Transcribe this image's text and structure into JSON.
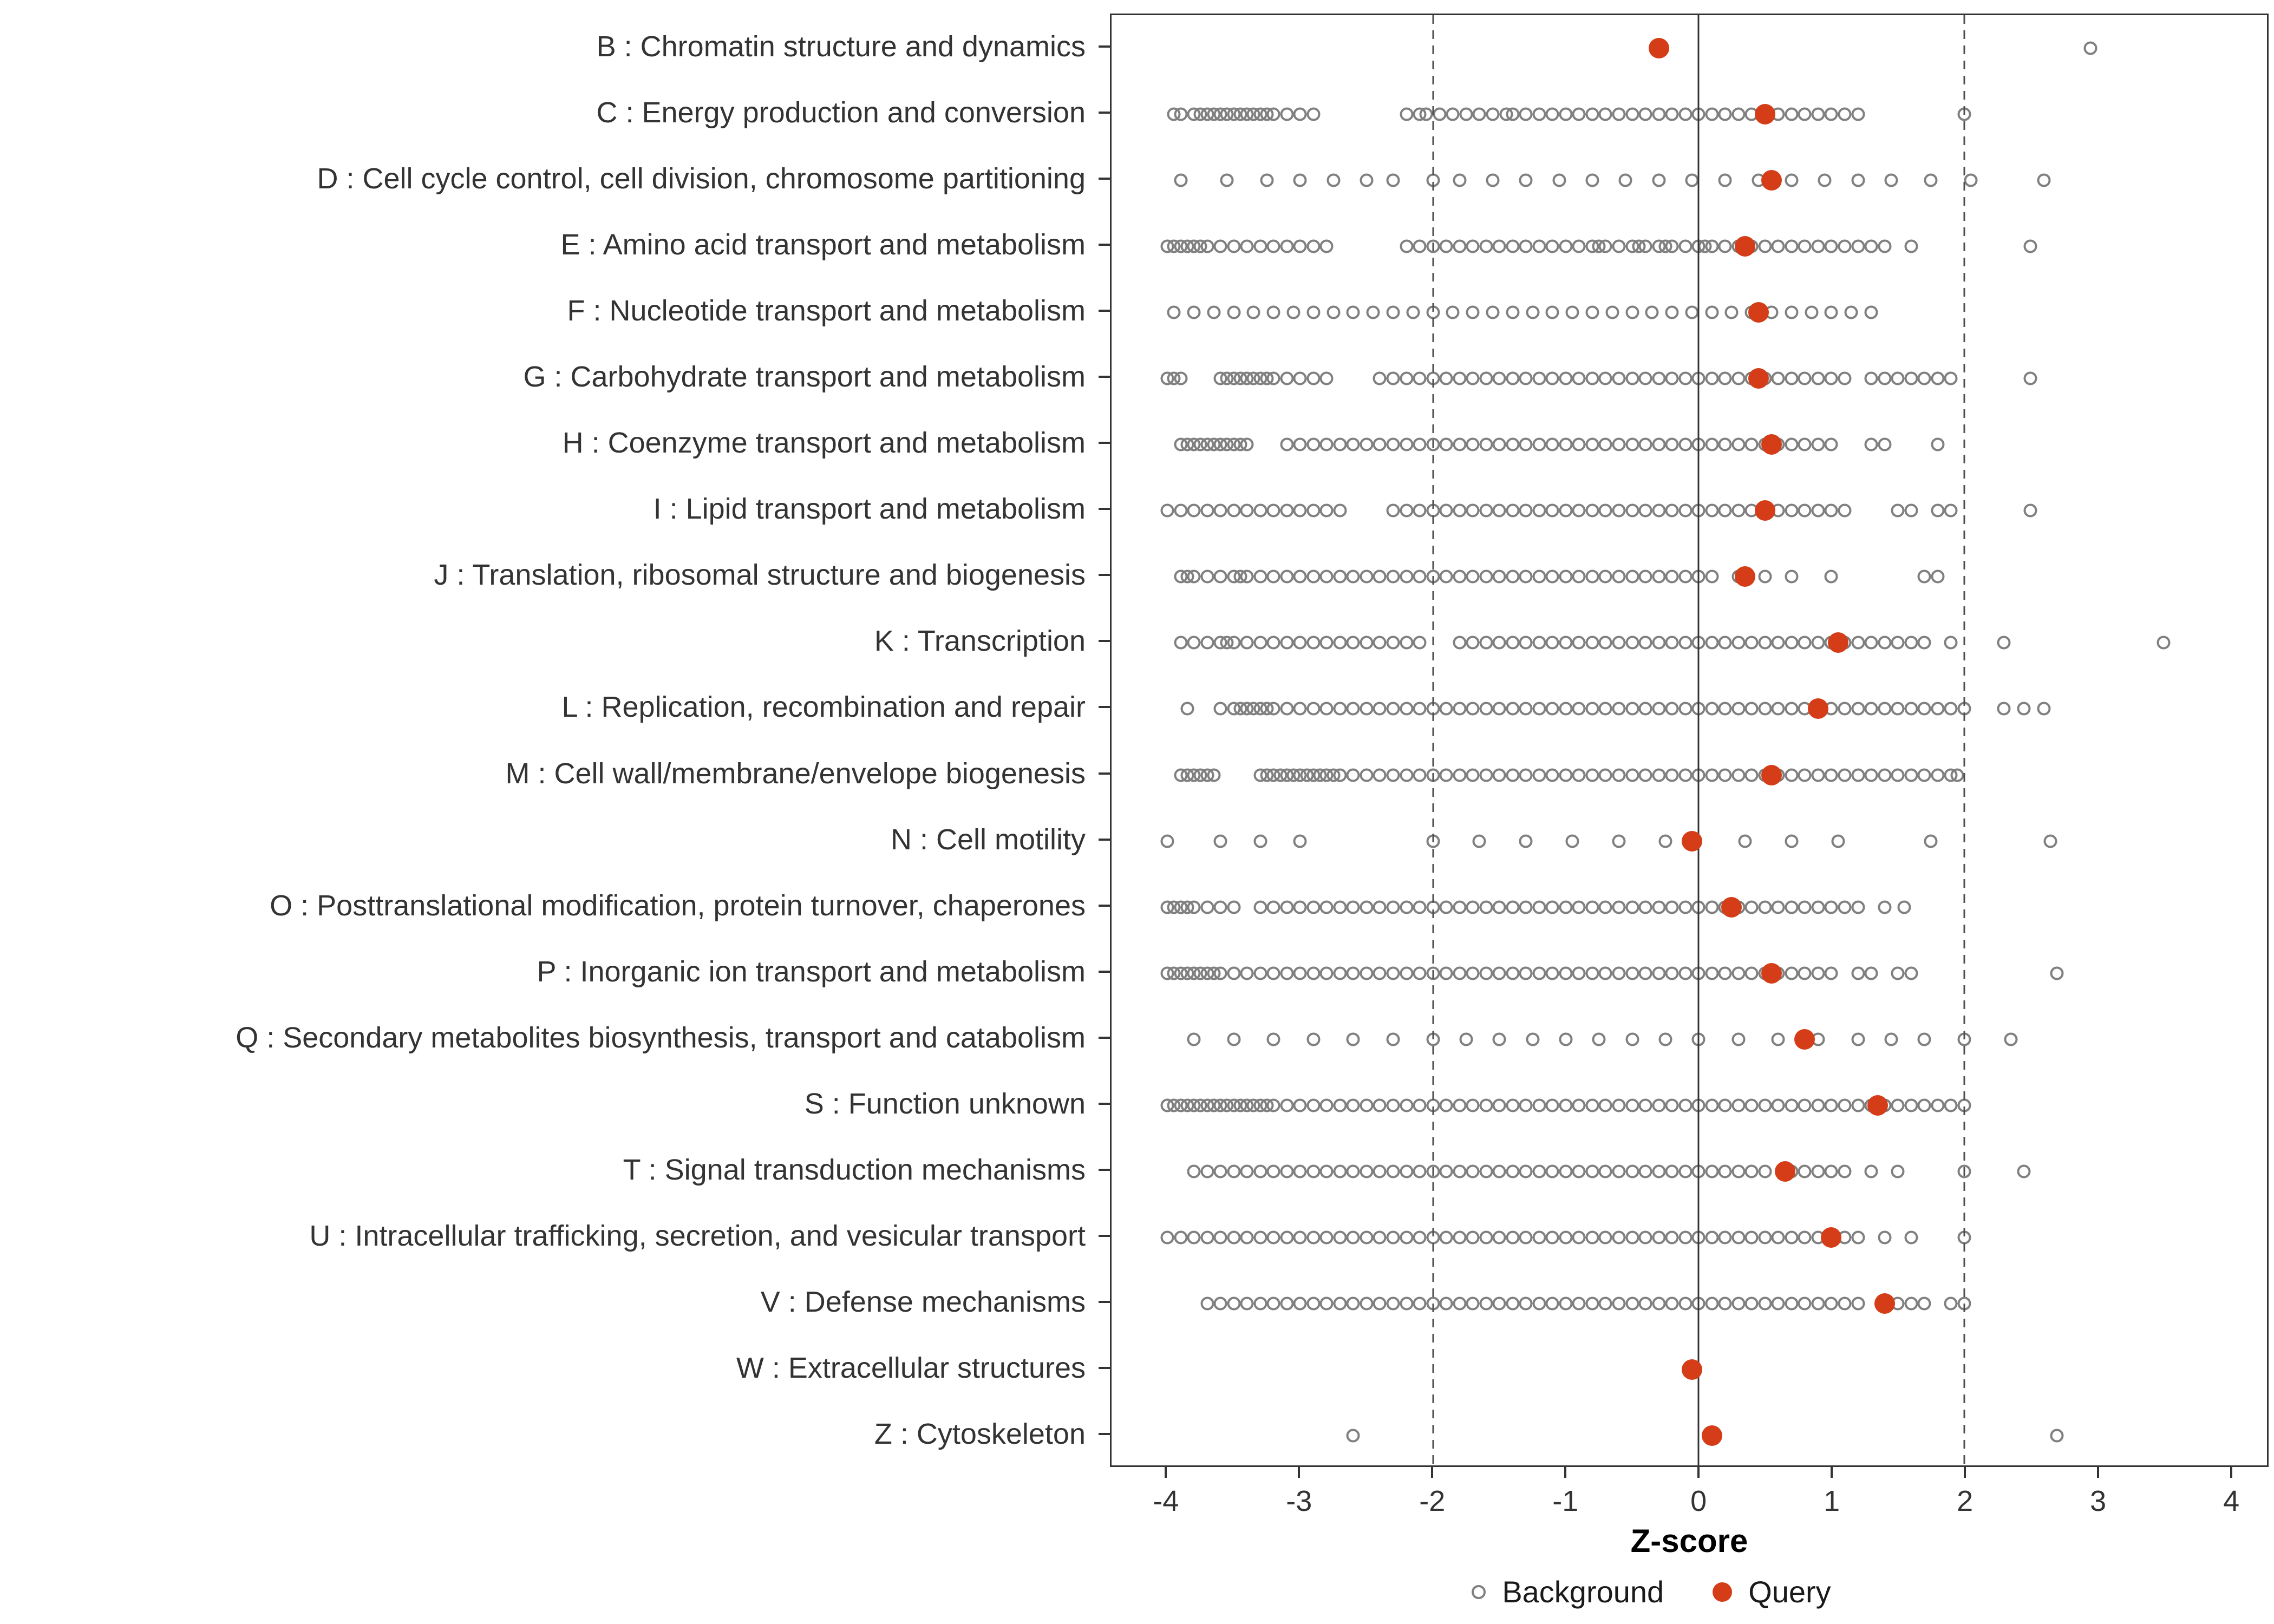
{
  "chart_data": {
    "type": "scatter",
    "subtype": "strip-dot-plot",
    "title": "",
    "xlabel": "Z-score",
    "ylabel": "",
    "xlim": [
      -4.42,
      4.28
    ],
    "x_ticks": [
      -4,
      -3,
      -2,
      -1,
      0,
      1,
      2,
      3,
      4
    ],
    "x_tick_labels": [
      "-4",
      "-3",
      "-2",
      "-1",
      "0",
      "1",
      "2",
      "3",
      "4"
    ],
    "reference_lines": {
      "solid": [
        0
      ],
      "dashed": [
        -2,
        2
      ]
    },
    "grid": "off",
    "legend_position": "bottom",
    "legend": [
      {
        "label": "Background",
        "marker": "open-circle"
      },
      {
        "label": "Query",
        "marker": "filled-circle"
      }
    ],
    "colors": {
      "background_stroke": "#808080",
      "query_fill": "#d43d17",
      "axis": "#333333",
      "reference_line": "#4d4d4d"
    },
    "categories": [
      {
        "label": "B : Chromatin structure and dynamics",
        "query": -0.3,
        "background": [
          2.95
        ]
      },
      {
        "label": "C : Energy production and conversion",
        "query": 0.5,
        "background": [
          -3.95,
          -3.9,
          -3.8,
          -3.75,
          -3.7,
          -3.65,
          -3.6,
          -3.55,
          -3.5,
          -3.45,
          -3.4,
          -3.35,
          -3.3,
          -3.25,
          -3.2,
          -3.1,
          -3.0,
          -2.9,
          -2.2,
          -2.1,
          -2.05,
          -1.95,
          -1.85,
          -1.75,
          -1.65,
          -1.55,
          -1.45,
          -1.4,
          -1.3,
          -1.2,
          -1.1,
          -1.0,
          -0.9,
          -0.8,
          -0.7,
          -0.6,
          -0.5,
          -0.4,
          -0.3,
          -0.2,
          -0.1,
          0.0,
          0.1,
          0.2,
          0.3,
          0.4,
          0.5,
          0.6,
          0.7,
          0.8,
          0.9,
          1.0,
          1.1,
          1.2,
          2.0
        ]
      },
      {
        "label": "D : Cell cycle control, cell division, chromosome partitioning",
        "query": 0.55,
        "background": [
          -3.9,
          -3.55,
          -3.25,
          -3.0,
          -2.75,
          -2.5,
          -2.3,
          -2.0,
          -1.8,
          -1.55,
          -1.3,
          -1.05,
          -0.8,
          -0.55,
          -0.3,
          -0.05,
          0.2,
          0.45,
          0.7,
          0.95,
          1.2,
          1.45,
          1.75,
          2.05,
          2.6
        ]
      },
      {
        "label": "E : Amino acid transport and metabolism",
        "query": 0.35,
        "background": [
          -4.0,
          -3.95,
          -3.9,
          -3.85,
          -3.8,
          -3.75,
          -3.7,
          -3.6,
          -3.5,
          -3.4,
          -3.3,
          -3.2,
          -3.1,
          -3.0,
          -2.9,
          -2.8,
          -2.2,
          -2.1,
          -2.0,
          -1.9,
          -1.8,
          -1.7,
          -1.6,
          -1.5,
          -1.4,
          -1.3,
          -1.2,
          -1.1,
          -1.0,
          -0.9,
          -0.8,
          -0.75,
          -0.7,
          -0.6,
          -0.5,
          -0.45,
          -0.4,
          -0.3,
          -0.25,
          -0.2,
          -0.1,
          0.0,
          0.05,
          0.1,
          0.2,
          0.3,
          0.4,
          0.5,
          0.6,
          0.7,
          0.8,
          0.9,
          1.0,
          1.1,
          1.2,
          1.3,
          1.4,
          1.6,
          2.5
        ]
      },
      {
        "label": "F : Nucleotide transport and metabolism",
        "query": 0.45,
        "background": [
          -3.95,
          -3.8,
          -3.65,
          -3.5,
          -3.35,
          -3.2,
          -3.05,
          -2.9,
          -2.75,
          -2.6,
          -2.45,
          -2.3,
          -2.15,
          -2.0,
          -1.85,
          -1.7,
          -1.55,
          -1.4,
          -1.25,
          -1.1,
          -0.95,
          -0.8,
          -0.65,
          -0.5,
          -0.35,
          -0.2,
          -0.05,
          0.1,
          0.25,
          0.4,
          0.55,
          0.7,
          0.85,
          1.0,
          1.15,
          1.3
        ]
      },
      {
        "label": "G : Carbohydrate transport and metabolism",
        "query": 0.45,
        "background": [
          -4.0,
          -3.95,
          -3.9,
          -3.6,
          -3.55,
          -3.5,
          -3.45,
          -3.4,
          -3.35,
          -3.3,
          -3.25,
          -3.2,
          -3.1,
          -3.0,
          -2.9,
          -2.8,
          -2.4,
          -2.3,
          -2.2,
          -2.1,
          -2.0,
          -1.9,
          -1.8,
          -1.7,
          -1.6,
          -1.5,
          -1.4,
          -1.3,
          -1.2,
          -1.1,
          -1.0,
          -0.9,
          -0.8,
          -0.7,
          -0.6,
          -0.5,
          -0.4,
          -0.3,
          -0.2,
          -0.1,
          0.0,
          0.1,
          0.2,
          0.3,
          0.4,
          0.5,
          0.6,
          0.7,
          0.8,
          0.9,
          1.0,
          1.1,
          1.3,
          1.4,
          1.5,
          1.6,
          1.7,
          1.8,
          1.9,
          2.5
        ]
      },
      {
        "label": "H : Coenzyme transport and metabolism",
        "query": 0.55,
        "background": [
          -3.9,
          -3.85,
          -3.8,
          -3.75,
          -3.7,
          -3.65,
          -3.6,
          -3.55,
          -3.5,
          -3.45,
          -3.4,
          -3.1,
          -3.0,
          -2.9,
          -2.8,
          -2.7,
          -2.6,
          -2.5,
          -2.4,
          -2.3,
          -2.2,
          -2.1,
          -2.0,
          -1.9,
          -1.8,
          -1.7,
          -1.6,
          -1.5,
          -1.4,
          -1.3,
          -1.2,
          -1.1,
          -1.0,
          -0.9,
          -0.8,
          -0.7,
          -0.6,
          -0.5,
          -0.4,
          -0.3,
          -0.2,
          -0.1,
          0.0,
          0.1,
          0.2,
          0.3,
          0.4,
          0.5,
          0.6,
          0.7,
          0.8,
          0.9,
          1.0,
          1.3,
          1.4,
          1.8
        ]
      },
      {
        "label": "I : Lipid transport and metabolism",
        "query": 0.5,
        "background": [
          -4.0,
          -3.9,
          -3.8,
          -3.7,
          -3.6,
          -3.5,
          -3.4,
          -3.3,
          -3.2,
          -3.1,
          -3.0,
          -2.9,
          -2.8,
          -2.7,
          -2.3,
          -2.2,
          -2.1,
          -2.0,
          -1.9,
          -1.8,
          -1.7,
          -1.6,
          -1.5,
          -1.4,
          -1.3,
          -1.2,
          -1.1,
          -1.0,
          -0.9,
          -0.8,
          -0.7,
          -0.6,
          -0.5,
          -0.4,
          -0.3,
          -0.2,
          -0.1,
          0.0,
          0.1,
          0.2,
          0.3,
          0.4,
          0.5,
          0.6,
          0.7,
          0.8,
          0.9,
          1.0,
          1.1,
          1.5,
          1.6,
          1.8,
          1.9,
          2.5
        ]
      },
      {
        "label": "J : Translation, ribosomal structure and biogenesis",
        "query": 0.35,
        "background": [
          -3.9,
          -3.85,
          -3.8,
          -3.7,
          -3.6,
          -3.5,
          -3.45,
          -3.4,
          -3.3,
          -3.2,
          -3.1,
          -3.0,
          -2.9,
          -2.8,
          -2.7,
          -2.6,
          -2.5,
          -2.4,
          -2.3,
          -2.2,
          -2.1,
          -2.0,
          -1.9,
          -1.8,
          -1.7,
          -1.6,
          -1.5,
          -1.4,
          -1.3,
          -1.2,
          -1.1,
          -1.0,
          -0.9,
          -0.8,
          -0.7,
          -0.6,
          -0.5,
          -0.4,
          -0.3,
          -0.2,
          -0.1,
          0.0,
          0.1,
          0.3,
          0.5,
          0.7,
          1.0,
          1.7,
          1.8
        ]
      },
      {
        "label": "K : Transcription",
        "query": 1.05,
        "background": [
          -3.9,
          -3.8,
          -3.7,
          -3.6,
          -3.55,
          -3.5,
          -3.4,
          -3.3,
          -3.2,
          -3.1,
          -3.0,
          -2.9,
          -2.8,
          -2.7,
          -2.6,
          -2.5,
          -2.4,
          -2.3,
          -2.2,
          -2.1,
          -1.8,
          -1.7,
          -1.6,
          -1.5,
          -1.4,
          -1.3,
          -1.2,
          -1.1,
          -1.0,
          -0.9,
          -0.8,
          -0.7,
          -0.6,
          -0.5,
          -0.4,
          -0.3,
          -0.2,
          -0.1,
          0.0,
          0.1,
          0.2,
          0.3,
          0.4,
          0.5,
          0.6,
          0.7,
          0.8,
          0.9,
          1.0,
          1.1,
          1.2,
          1.3,
          1.4,
          1.5,
          1.6,
          1.7,
          1.9,
          2.3,
          3.5
        ]
      },
      {
        "label": "L : Replication, recombination and repair",
        "query": 0.9,
        "background": [
          -3.85,
          -3.6,
          -3.5,
          -3.45,
          -3.4,
          -3.35,
          -3.3,
          -3.25,
          -3.2,
          -3.1,
          -3.0,
          -2.9,
          -2.8,
          -2.7,
          -2.6,
          -2.5,
          -2.4,
          -2.3,
          -2.2,
          -2.1,
          -2.0,
          -1.9,
          -1.8,
          -1.7,
          -1.6,
          -1.5,
          -1.4,
          -1.3,
          -1.2,
          -1.1,
          -1.0,
          -0.9,
          -0.8,
          -0.7,
          -0.6,
          -0.5,
          -0.4,
          -0.3,
          -0.2,
          -0.1,
          0.0,
          0.1,
          0.2,
          0.3,
          0.4,
          0.5,
          0.6,
          0.7,
          0.8,
          1.0,
          1.1,
          1.2,
          1.3,
          1.4,
          1.5,
          1.6,
          1.7,
          1.8,
          1.9,
          2.0,
          2.3,
          2.45,
          2.6
        ]
      },
      {
        "label": "M : Cell wall/membrane/envelope biogenesis",
        "query": 0.55,
        "background": [
          -3.9,
          -3.85,
          -3.8,
          -3.75,
          -3.7,
          -3.65,
          -3.3,
          -3.25,
          -3.2,
          -3.15,
          -3.1,
          -3.05,
          -3.0,
          -2.95,
          -2.9,
          -2.85,
          -2.8,
          -2.75,
          -2.7,
          -2.6,
          -2.5,
          -2.4,
          -2.3,
          -2.2,
          -2.1,
          -2.0,
          -1.9,
          -1.8,
          -1.7,
          -1.6,
          -1.5,
          -1.4,
          -1.3,
          -1.2,
          -1.1,
          -1.0,
          -0.9,
          -0.8,
          -0.7,
          -0.6,
          -0.5,
          -0.4,
          -0.3,
          -0.2,
          -0.1,
          0.0,
          0.1,
          0.2,
          0.3,
          0.4,
          0.5,
          0.6,
          0.7,
          0.8,
          0.9,
          1.0,
          1.1,
          1.2,
          1.3,
          1.4,
          1.5,
          1.6,
          1.7,
          1.8,
          1.9,
          1.95
        ]
      },
      {
        "label": "N : Cell motility",
        "query": -0.05,
        "background": [
          -4.0,
          -3.6,
          -3.3,
          -3.0,
          -2.0,
          -1.65,
          -1.3,
          -0.95,
          -0.6,
          -0.25,
          0.35,
          0.7,
          1.05,
          1.75,
          2.65
        ]
      },
      {
        "label": "O : Posttranslational modification, protein turnover, chaperones",
        "query": 0.25,
        "background": [
          -4.0,
          -3.95,
          -3.9,
          -3.85,
          -3.8,
          -3.7,
          -3.6,
          -3.5,
          -3.3,
          -3.2,
          -3.1,
          -3.0,
          -2.9,
          -2.8,
          -2.7,
          -2.6,
          -2.5,
          -2.4,
          -2.3,
          -2.2,
          -2.1,
          -2.0,
          -1.9,
          -1.8,
          -1.7,
          -1.6,
          -1.5,
          -1.4,
          -1.3,
          -1.2,
          -1.1,
          -1.0,
          -0.9,
          -0.8,
          -0.7,
          -0.6,
          -0.5,
          -0.4,
          -0.3,
          -0.2,
          -0.1,
          0.0,
          0.1,
          0.2,
          0.3,
          0.4,
          0.5,
          0.6,
          0.7,
          0.8,
          0.9,
          1.0,
          1.1,
          1.2,
          1.4,
          1.55
        ]
      },
      {
        "label": "P : Inorganic ion transport and metabolism",
        "query": 0.55,
        "background": [
          -4.0,
          -3.95,
          -3.9,
          -3.85,
          -3.8,
          -3.75,
          -3.7,
          -3.65,
          -3.6,
          -3.5,
          -3.4,
          -3.3,
          -3.2,
          -3.1,
          -3.0,
          -2.9,
          -2.8,
          -2.7,
          -2.6,
          -2.5,
          -2.4,
          -2.3,
          -2.2,
          -2.1,
          -2.0,
          -1.9,
          -1.8,
          -1.7,
          -1.6,
          -1.5,
          -1.4,
          -1.3,
          -1.2,
          -1.1,
          -1.0,
          -0.9,
          -0.8,
          -0.7,
          -0.6,
          -0.5,
          -0.4,
          -0.3,
          -0.2,
          -0.1,
          0.0,
          0.1,
          0.2,
          0.3,
          0.4,
          0.5,
          0.6,
          0.7,
          0.8,
          0.9,
          1.0,
          1.2,
          1.3,
          1.5,
          1.6,
          2.7
        ]
      },
      {
        "label": "Q : Secondary metabolites biosynthesis, transport and catabolism",
        "query": 0.8,
        "background": [
          -3.8,
          -3.5,
          -3.2,
          -2.9,
          -2.6,
          -2.3,
          -2.0,
          -1.75,
          -1.5,
          -1.25,
          -1.0,
          -0.75,
          -0.5,
          -0.25,
          0.0,
          0.3,
          0.6,
          0.9,
          1.2,
          1.45,
          1.7,
          2.0,
          2.35
        ]
      },
      {
        "label": "S : Function unknown",
        "query": 1.35,
        "background": [
          -4.0,
          -3.95,
          -3.9,
          -3.85,
          -3.8,
          -3.75,
          -3.7,
          -3.65,
          -3.6,
          -3.55,
          -3.5,
          -3.45,
          -3.4,
          -3.35,
          -3.3,
          -3.25,
          -3.2,
          -3.1,
          -3.0,
          -2.9,
          -2.8,
          -2.7,
          -2.6,
          -2.5,
          -2.4,
          -2.3,
          -2.2,
          -2.1,
          -2.0,
          -1.9,
          -1.8,
          -1.7,
          -1.6,
          -1.5,
          -1.4,
          -1.3,
          -1.2,
          -1.1,
          -1.0,
          -0.9,
          -0.8,
          -0.7,
          -0.6,
          -0.5,
          -0.4,
          -0.3,
          -0.2,
          -0.1,
          0.0,
          0.1,
          0.2,
          0.3,
          0.4,
          0.5,
          0.6,
          0.7,
          0.8,
          0.9,
          1.0,
          1.1,
          1.2,
          1.3,
          1.4,
          1.5,
          1.6,
          1.7,
          1.8,
          1.9,
          2.0
        ]
      },
      {
        "label": "T : Signal transduction mechanisms",
        "query": 0.65,
        "background": [
          -3.8,
          -3.7,
          -3.6,
          -3.5,
          -3.4,
          -3.3,
          -3.2,
          -3.1,
          -3.0,
          -2.9,
          -2.8,
          -2.7,
          -2.6,
          -2.5,
          -2.4,
          -2.3,
          -2.2,
          -2.1,
          -2.0,
          -1.9,
          -1.8,
          -1.7,
          -1.6,
          -1.5,
          -1.4,
          -1.3,
          -1.2,
          -1.1,
          -1.0,
          -0.9,
          -0.8,
          -0.7,
          -0.6,
          -0.5,
          -0.4,
          -0.3,
          -0.2,
          -0.1,
          0.0,
          0.1,
          0.2,
          0.3,
          0.4,
          0.5,
          0.7,
          0.8,
          0.9,
          1.0,
          1.1,
          1.3,
          1.5,
          2.0,
          2.45
        ]
      },
      {
        "label": "U : Intracellular trafficking, secretion, and vesicular transport",
        "query": 1.0,
        "background": [
          -4.0,
          -3.9,
          -3.8,
          -3.7,
          -3.6,
          -3.5,
          -3.4,
          -3.3,
          -3.2,
          -3.1,
          -3.0,
          -2.9,
          -2.8,
          -2.7,
          -2.6,
          -2.5,
          -2.4,
          -2.3,
          -2.2,
          -2.1,
          -2.0,
          -1.9,
          -1.8,
          -1.7,
          -1.6,
          -1.5,
          -1.4,
          -1.3,
          -1.2,
          -1.1,
          -1.0,
          -0.9,
          -0.8,
          -0.7,
          -0.6,
          -0.5,
          -0.4,
          -0.3,
          -0.2,
          -0.1,
          0.0,
          0.1,
          0.2,
          0.3,
          0.4,
          0.5,
          0.6,
          0.7,
          0.8,
          0.9,
          1.1,
          1.2,
          1.4,
          1.6,
          2.0
        ]
      },
      {
        "label": "V : Defense mechanisms",
        "query": 1.4,
        "background": [
          -3.7,
          -3.6,
          -3.5,
          -3.4,
          -3.3,
          -3.2,
          -3.1,
          -3.0,
          -2.9,
          -2.8,
          -2.7,
          -2.6,
          -2.5,
          -2.4,
          -2.3,
          -2.2,
          -2.1,
          -2.0,
          -1.9,
          -1.8,
          -1.7,
          -1.6,
          -1.5,
          -1.4,
          -1.3,
          -1.2,
          -1.1,
          -1.0,
          -0.9,
          -0.8,
          -0.7,
          -0.6,
          -0.5,
          -0.4,
          -0.3,
          -0.2,
          -0.1,
          0.0,
          0.1,
          0.2,
          0.3,
          0.4,
          0.5,
          0.6,
          0.7,
          0.8,
          0.9,
          1.0,
          1.1,
          1.2,
          1.5,
          1.6,
          1.7,
          1.9,
          2.0
        ]
      },
      {
        "label": "W : Extracellular structures",
        "query": -0.05,
        "background": []
      },
      {
        "label": "Z : Cytoskeleton",
        "query": 0.1,
        "background": [
          -2.6,
          2.7
        ]
      }
    ]
  }
}
